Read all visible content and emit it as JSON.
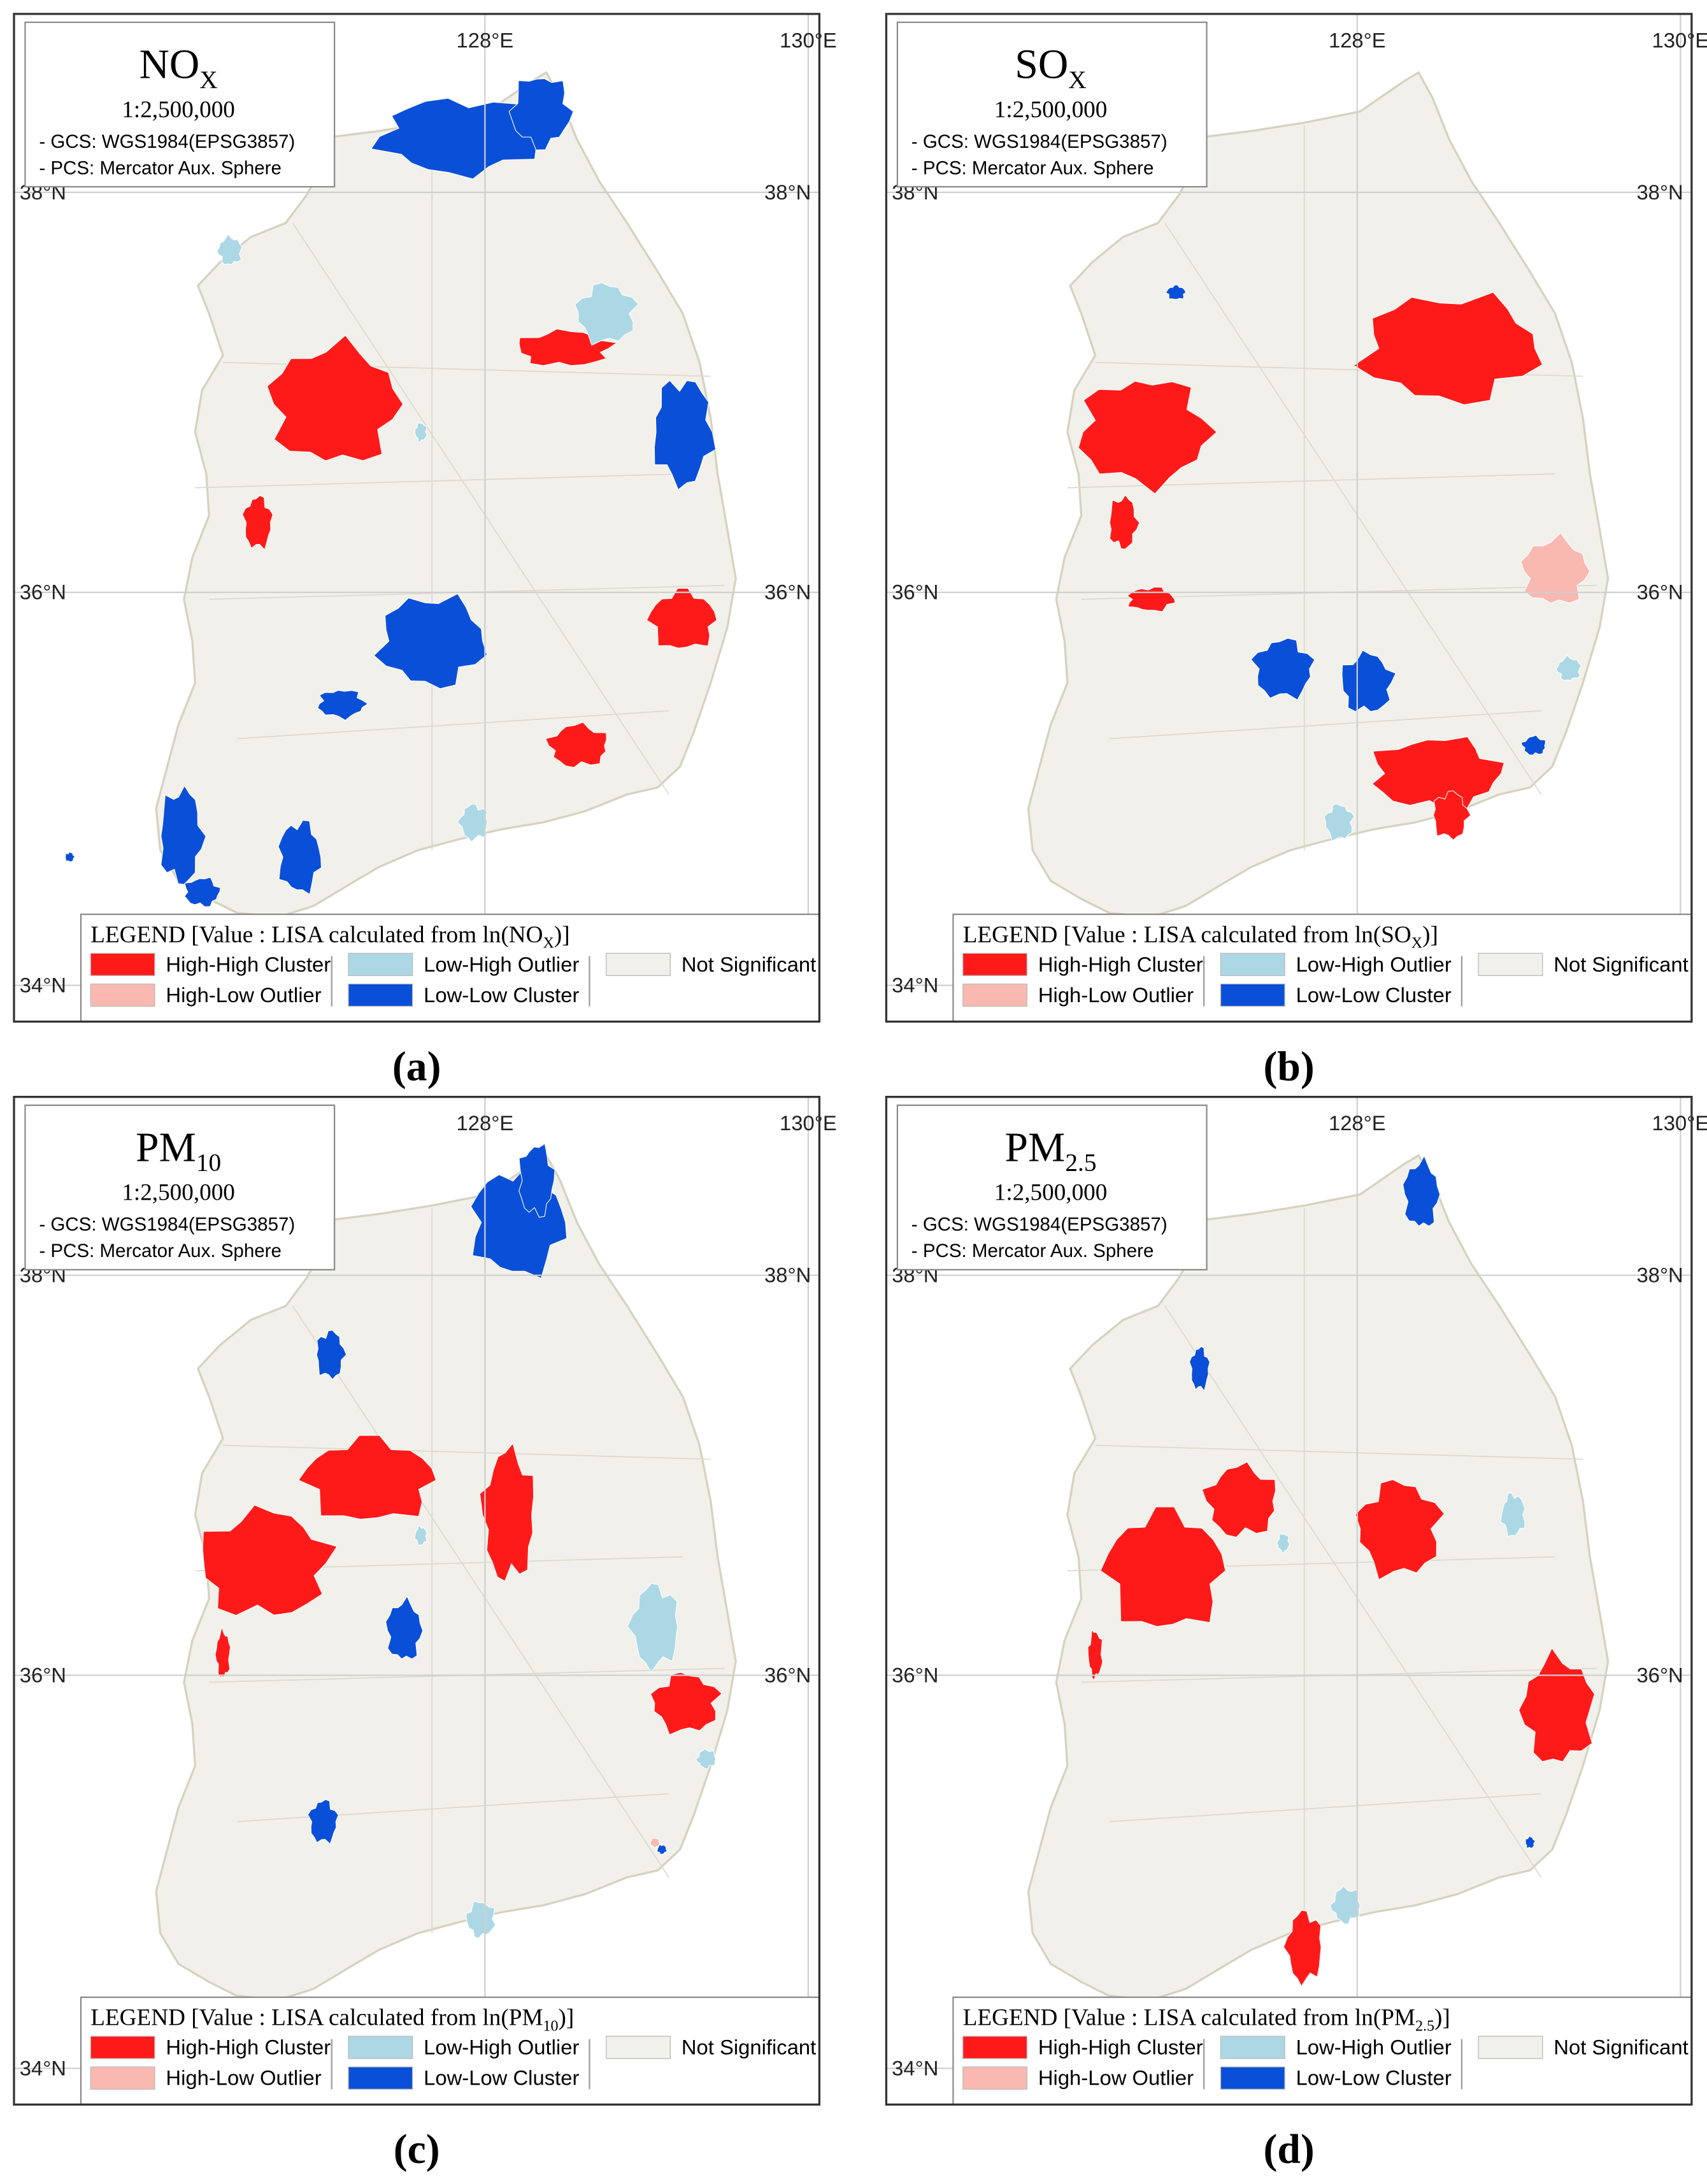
{
  "panels": [
    {
      "title": {
        "main": "NO",
        "sub": "X"
      },
      "scale": "1:2,500,000",
      "gcs": "- GCS: WGS1984(EPSG3857)",
      "pcs": "- PCS: Mercator Aux. Sphere",
      "axis_labels": {
        "lon": [
          "128°E",
          "130°E"
        ],
        "lat": [
          "38°N",
          "36°N",
          "34°N"
        ]
      },
      "legend": {
        "title_prefix": "LEGEND [Value : LISA calculated from ln(NO",
        "title_sub": "X",
        "title_suffix": ")]",
        "items": [
          {
            "label": "High-High Cluster",
            "color": "#ff1a1a"
          },
          {
            "label": "High-Low Outlier",
            "color": "#f9b8b0"
          },
          {
            "label": "Low-High Outlier",
            "color": "#acd8e6"
          },
          {
            "label": "Low-Low Cluster",
            "color": "#0a4fd8"
          },
          {
            "label": "Not Significant",
            "color": "#f1f0ea"
          }
        ]
      },
      "caption": "(a)"
    },
    {
      "title": {
        "main": "SO",
        "sub": "X"
      },
      "scale": "1:2,500,000",
      "gcs": "- GCS: WGS1984(EPSG3857)",
      "pcs": "- PCS: Mercator Aux. Sphere",
      "axis_labels": {
        "lon": [
          "128°E",
          "130°E"
        ],
        "lat": [
          "38°N",
          "36°N",
          "34°N"
        ]
      },
      "legend": {
        "title_prefix": "LEGEND [Value : LISA calculated from ln(SO",
        "title_sub": "X",
        "title_suffix": ")]",
        "items": [
          {
            "label": "High-High Cluster",
            "color": "#ff1a1a"
          },
          {
            "label": "High-Low Outlier",
            "color": "#f9b8b0"
          },
          {
            "label": "Low-High Outlier",
            "color": "#acd8e6"
          },
          {
            "label": "Low-Low Cluster",
            "color": "#0a4fd8"
          },
          {
            "label": "Not Significant",
            "color": "#f1f0ea"
          }
        ]
      },
      "caption": "(b)"
    },
    {
      "title": {
        "main": "PM",
        "sub": "10"
      },
      "scale": "1:2,500,000",
      "gcs": "- GCS: WGS1984(EPSG3857)",
      "pcs": "- PCS: Mercator Aux. Sphere",
      "axis_labels": {
        "lon": [
          "128°E",
          "130°E"
        ],
        "lat": [
          "38°N",
          "36°N",
          "34°N"
        ]
      },
      "legend": {
        "title_prefix": "LEGEND [Value : LISA calculated from ln(PM",
        "title_sub": "10",
        "title_suffix": ")]",
        "items": [
          {
            "label": "High-High Cluster",
            "color": "#ff1a1a"
          },
          {
            "label": "High-Low Outlier",
            "color": "#f9b8b0"
          },
          {
            "label": "Low-High Outlier",
            "color": "#acd8e6"
          },
          {
            "label": "Low-Low Cluster",
            "color": "#0a4fd8"
          },
          {
            "label": "Not Significant",
            "color": "#f1f0ea"
          }
        ]
      },
      "caption": "(c)"
    },
    {
      "title": {
        "main": "PM",
        "sub": "2.5"
      },
      "scale": "1:2,500,000",
      "gcs": "- GCS: WGS1984(EPSG3857)",
      "pcs": "- PCS: Mercator Aux. Sphere",
      "axis_labels": {
        "lon": [
          "128°E",
          "130°E"
        ],
        "lat": [
          "38°N",
          "36°N",
          "34°N"
        ]
      },
      "legend": {
        "title_prefix": "LEGEND [Value : LISA calculated from ln(PM",
        "title_sub": "2.5",
        "title_suffix": ")]",
        "items": [
          {
            "label": "High-High Cluster",
            "color": "#ff1a1a"
          },
          {
            "label": "High-Low Outlier",
            "color": "#f9b8b0"
          },
          {
            "label": "Low-High Outlier",
            "color": "#acd8e6"
          },
          {
            "label": "Low-Low Cluster",
            "color": "#0a4fd8"
          },
          {
            "label": "Not Significant",
            "color": "#f1f0ea"
          }
        ]
      },
      "caption": "(d)"
    }
  ]
}
